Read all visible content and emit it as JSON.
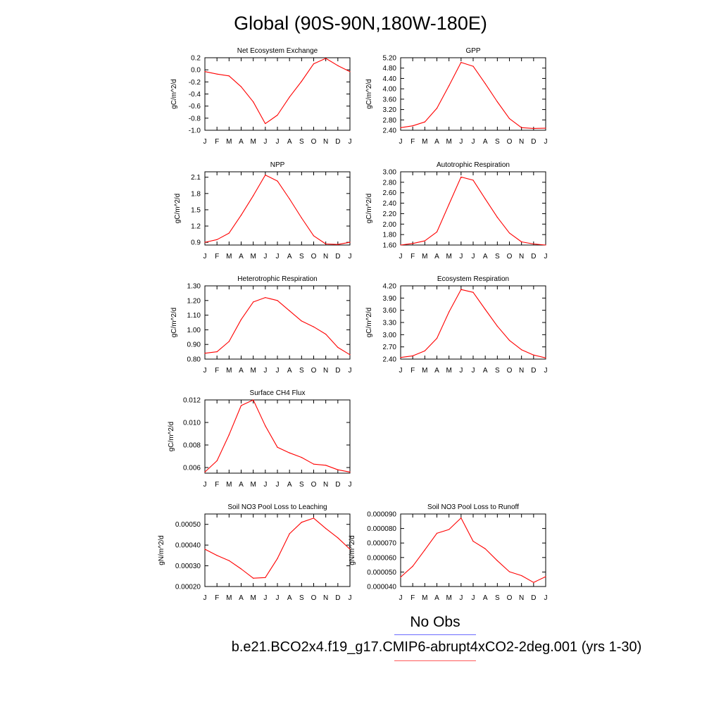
{
  "figure": {
    "title": "Global (90S-90N,180W-180E)",
    "legend": {
      "obs_label": "No Obs",
      "obs_color": "#6b6bff",
      "model_label": "b.e21.BCO2x4.f19_g17.CMIP6-abrupt4xCO2-2deg.001 (yrs 1-30)",
      "model_color": "#ff5a5a"
    }
  },
  "chart_data": [
    {
      "type": "line",
      "title": "Net Ecosystem Exchange",
      "ylabel": "gC/m^2/d",
      "xlabel": "",
      "x": [
        "J",
        "F",
        "M",
        "A",
        "M",
        "J",
        "J",
        "A",
        "S",
        "O",
        "N",
        "D",
        "J"
      ],
      "ylim": [
        -1.0,
        0.2
      ],
      "yticks": [
        "0.2",
        "0.0",
        "-0.2",
        "-0.4",
        "-0.6",
        "-0.8",
        "-1.0"
      ],
      "series": [
        {
          "color": "#ff0000",
          "values": [
            -0.03,
            -0.07,
            -0.1,
            -0.28,
            -0.53,
            -0.89,
            -0.75,
            -0.45,
            -0.19,
            0.1,
            0.19,
            0.07,
            -0.03
          ]
        }
      ]
    },
    {
      "type": "line",
      "title": "GPP",
      "ylabel": "gC/m^2/d",
      "xlabel": "",
      "x": [
        "J",
        "F",
        "M",
        "A",
        "M",
        "J",
        "J",
        "A",
        "S",
        "O",
        "N",
        "D",
        "J"
      ],
      "ylim": [
        2.4,
        5.2
      ],
      "yticks": [
        "5.20",
        "4.80",
        "4.40",
        "4.00",
        "3.60",
        "3.20",
        "2.80",
        "2.40"
      ],
      "series": [
        {
          "color": "#ff0000",
          "values": [
            2.5,
            2.57,
            2.72,
            3.25,
            4.12,
            5.02,
            4.87,
            4.2,
            3.5,
            2.85,
            2.5,
            2.47,
            2.48
          ]
        }
      ]
    },
    {
      "type": "line",
      "title": "NPP",
      "ylabel": "gC/m^2/d",
      "xlabel": "",
      "x": [
        "J",
        "F",
        "M",
        "A",
        "M",
        "J",
        "J",
        "A",
        "S",
        "O",
        "N",
        "D",
        "J"
      ],
      "ylim": [
        0.85,
        2.2
      ],
      "yticks": [
        "2.1",
        "1.8",
        "1.5",
        "1.2",
        "0.9"
      ],
      "series": [
        {
          "color": "#ff0000",
          "values": [
            0.9,
            0.95,
            1.07,
            1.4,
            1.76,
            2.14,
            2.03,
            1.7,
            1.35,
            1.02,
            0.87,
            0.86,
            0.9
          ]
        }
      ]
    },
    {
      "type": "line",
      "title": "Autotrophic Respiration",
      "ylabel": "gC/m^2/d",
      "xlabel": "",
      "x": [
        "J",
        "F",
        "M",
        "A",
        "M",
        "J",
        "J",
        "A",
        "S",
        "O",
        "N",
        "D",
        "J"
      ],
      "ylim": [
        1.6,
        3.0
      ],
      "yticks": [
        "3.00",
        "2.80",
        "2.60",
        "2.40",
        "2.20",
        "2.00",
        "1.80",
        "1.60"
      ],
      "series": [
        {
          "color": "#ff0000",
          "values": [
            1.6,
            1.63,
            1.68,
            1.85,
            2.38,
            2.9,
            2.84,
            2.48,
            2.13,
            1.83,
            1.66,
            1.62,
            1.6
          ]
        }
      ]
    },
    {
      "type": "line",
      "title": "Heterotrophic Respiration",
      "ylabel": "gC/m^2/d",
      "xlabel": "",
      "x": [
        "J",
        "F",
        "M",
        "A",
        "M",
        "J",
        "J",
        "A",
        "S",
        "O",
        "N",
        "D",
        "J"
      ],
      "ylim": [
        0.8,
        1.3
      ],
      "yticks": [
        "1.30",
        "1.20",
        "1.10",
        "1.00",
        "0.90",
        "0.80"
      ],
      "series": [
        {
          "color": "#ff0000",
          "values": [
            0.84,
            0.85,
            0.92,
            1.07,
            1.19,
            1.22,
            1.2,
            1.13,
            1.06,
            1.02,
            0.97,
            0.88,
            0.83
          ]
        }
      ]
    },
    {
      "type": "line",
      "title": "Ecosystem Respiration",
      "ylabel": "gC/m^2/d",
      "xlabel": "",
      "x": [
        "J",
        "F",
        "M",
        "A",
        "M",
        "J",
        "J",
        "A",
        "S",
        "O",
        "N",
        "D",
        "J"
      ],
      "ylim": [
        2.4,
        4.2
      ],
      "yticks": [
        "4.20",
        "3.90",
        "3.60",
        "3.30",
        "3.00",
        "2.70",
        "2.40"
      ],
      "series": [
        {
          "color": "#ff0000",
          "values": [
            2.44,
            2.48,
            2.6,
            2.91,
            3.56,
            4.11,
            4.04,
            3.62,
            3.21,
            2.86,
            2.63,
            2.5,
            2.43
          ]
        }
      ]
    },
    {
      "type": "line",
      "title": "Surface CH4 Flux",
      "ylabel": "gC/m^2/d",
      "xlabel": "",
      "x": [
        "J",
        "F",
        "M",
        "A",
        "M",
        "J",
        "J",
        "A",
        "S",
        "O",
        "N",
        "D",
        "J"
      ],
      "ylim": [
        0.0055,
        0.012
      ],
      "yticks": [
        "0.012",
        "0.010",
        "0.008",
        "0.006"
      ],
      "series": [
        {
          "color": "#ff0000",
          "values": [
            0.0056,
            0.0066,
            0.0089,
            0.0115,
            0.012,
            0.0097,
            0.0078,
            0.0073,
            0.0069,
            0.0063,
            0.0062,
            0.0058,
            0.0056
          ]
        }
      ]
    },
    {
      "type": "line",
      "title": "Soil NO3 Pool Loss to Leaching",
      "ylabel": "gN/m^2/d",
      "xlabel": "",
      "x": [
        "J",
        "F",
        "M",
        "A",
        "M",
        "J",
        "J",
        "A",
        "S",
        "O",
        "N",
        "D",
        "J"
      ],
      "ylim": [
        0.0002,
        0.00055
      ],
      "yticks": [
        "0.00050",
        "0.00040",
        "0.00030",
        "0.00020"
      ],
      "series": [
        {
          "color": "#ff0000",
          "values": [
            0.00038,
            0.00035,
            0.000325,
            0.000285,
            0.00024,
            0.000243,
            0.000335,
            0.000455,
            0.00051,
            0.00053,
            0.00048,
            0.000435,
            0.00038
          ]
        }
      ]
    },
    {
      "type": "line",
      "title": "Soil NO3 Pool Loss to Runoff",
      "ylabel": "gN/m^2/d",
      "xlabel": "",
      "x": [
        "J",
        "F",
        "M",
        "A",
        "M",
        "J",
        "J",
        "A",
        "S",
        "O",
        "N",
        "D",
        "J"
      ],
      "ylim": [
        4e-05,
        9e-05
      ],
      "yticks": [
        "0.000090",
        "0.000080",
        "0.000070",
        "0.000060",
        "0.000050",
        "0.000040"
      ],
      "series": [
        {
          "color": "#ff0000",
          "values": [
            4.65e-05,
            5.4e-05,
            6.52e-05,
            7.67e-05,
            7.93e-05,
            8.73e-05,
            7.12e-05,
            6.6e-05,
            5.78e-05,
            5.02e-05,
            4.75e-05,
            4.28e-05,
            4.68e-05
          ]
        }
      ]
    }
  ]
}
